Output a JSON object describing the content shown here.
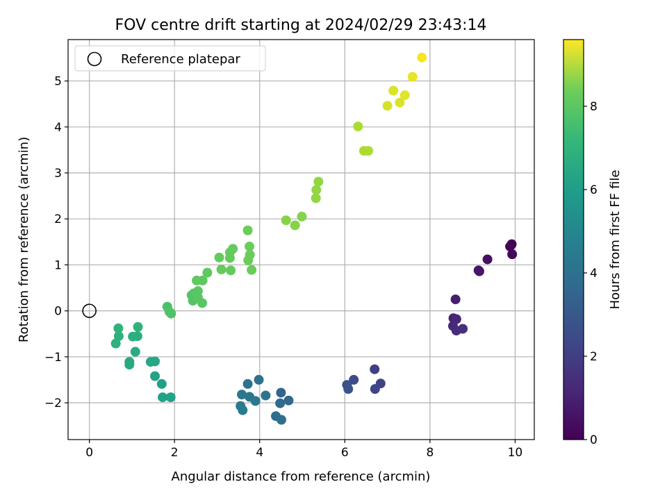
{
  "chart_data": {
    "type": "scatter",
    "title": "FOV centre drift starting at 2024/02/29 23:43:14",
    "xlabel": "Angular distance from reference (arcmin)",
    "ylabel": "Rotation from reference (arcmin)",
    "xlim": [
      -0.5,
      10.45
    ],
    "ylim": [
      -2.8,
      5.9
    ],
    "xticks": [
      0,
      2,
      4,
      6,
      8,
      10
    ],
    "yticks": [
      -2,
      -1,
      0,
      1,
      2,
      3,
      4,
      5
    ],
    "grid": true,
    "legend": {
      "position": "top-left",
      "entries": [
        "Reference platepar"
      ]
    },
    "reference_point": {
      "x": 0,
      "y": 0,
      "marker": "open-circle"
    },
    "colorbar": {
      "label": "Hours from first FF file",
      "colormap": "viridis",
      "range": [
        0,
        9.6
      ],
      "ticks": [
        0,
        2,
        4,
        6,
        8
      ]
    },
    "points": [
      {
        "x": 9.92,
        "y": 1.45,
        "c": 0.0
      },
      {
        "x": 9.88,
        "y": 1.4,
        "c": 0.1
      },
      {
        "x": 9.93,
        "y": 1.23,
        "c": 0.2
      },
      {
        "x": 9.35,
        "y": 1.12,
        "c": 0.4
      },
      {
        "x": 9.14,
        "y": 0.88,
        "c": 0.5
      },
      {
        "x": 9.16,
        "y": 0.86,
        "c": 0.6
      },
      {
        "x": 8.6,
        "y": 0.25,
        "c": 0.8
      },
      {
        "x": 8.55,
        "y": -0.16,
        "c": 0.9
      },
      {
        "x": 8.62,
        "y": -0.18,
        "c": 1.0
      },
      {
        "x": 8.54,
        "y": -0.33,
        "c": 1.1
      },
      {
        "x": 8.62,
        "y": -0.43,
        "c": 1.2
      },
      {
        "x": 8.77,
        "y": -0.39,
        "c": 1.3
      },
      {
        "x": 6.7,
        "y": -1.27,
        "c": 1.8
      },
      {
        "x": 6.84,
        "y": -1.58,
        "c": 1.9
      },
      {
        "x": 6.71,
        "y": -1.7,
        "c": 2.0
      },
      {
        "x": 6.21,
        "y": -1.5,
        "c": 2.2
      },
      {
        "x": 6.05,
        "y": -1.61,
        "c": 2.4
      },
      {
        "x": 6.08,
        "y": -1.7,
        "c": 2.5
      },
      {
        "x": 4.5,
        "y": -1.78,
        "c": 3.1
      },
      {
        "x": 4.68,
        "y": -1.95,
        "c": 3.2
      },
      {
        "x": 4.48,
        "y": -2.01,
        "c": 3.3
      },
      {
        "x": 4.38,
        "y": -2.29,
        "c": 3.4
      },
      {
        "x": 4.51,
        "y": -2.37,
        "c": 3.5
      },
      {
        "x": 3.98,
        "y": -1.5,
        "c": 3.6
      },
      {
        "x": 3.72,
        "y": -1.59,
        "c": 3.6
      },
      {
        "x": 4.14,
        "y": -1.84,
        "c": 3.7
      },
      {
        "x": 3.58,
        "y": -1.82,
        "c": 3.8
      },
      {
        "x": 3.76,
        "y": -1.87,
        "c": 3.8
      },
      {
        "x": 3.9,
        "y": -1.96,
        "c": 3.9
      },
      {
        "x": 3.55,
        "y": -2.07,
        "c": 3.9
      },
      {
        "x": 3.6,
        "y": -2.16,
        "c": 4.0
      },
      {
        "x": 1.7,
        "y": -1.59,
        "c": 5.4
      },
      {
        "x": 1.72,
        "y": -1.88,
        "c": 5.5
      },
      {
        "x": 1.91,
        "y": -1.88,
        "c": 5.5
      },
      {
        "x": 1.54,
        "y": -1.42,
        "c": 5.6
      },
      {
        "x": 1.44,
        "y": -1.11,
        "c": 5.7
      },
      {
        "x": 1.54,
        "y": -1.1,
        "c": 5.7
      },
      {
        "x": 0.94,
        "y": -1.11,
        "c": 5.8
      },
      {
        "x": 0.94,
        "y": -1.17,
        "c": 5.8
      },
      {
        "x": 1.08,
        "y": -0.89,
        "c": 5.9
      },
      {
        "x": 1.02,
        "y": -0.56,
        "c": 6.0
      },
      {
        "x": 1.13,
        "y": -0.55,
        "c": 6.0
      },
      {
        "x": 0.69,
        "y": -0.55,
        "c": 6.1
      },
      {
        "x": 0.62,
        "y": -0.71,
        "c": 6.1
      },
      {
        "x": 0.68,
        "y": -0.38,
        "c": 6.2
      },
      {
        "x": 1.14,
        "y": -0.35,
        "c": 6.2
      },
      {
        "x": 1.83,
        "y": 0.09,
        "c": 6.8
      },
      {
        "x": 1.88,
        "y": -0.02,
        "c": 6.9
      },
      {
        "x": 1.92,
        "y": -0.06,
        "c": 6.9
      },
      {
        "x": 2.4,
        "y": 0.34,
        "c": 7.0
      },
      {
        "x": 2.43,
        "y": 0.22,
        "c": 7.0
      },
      {
        "x": 2.45,
        "y": 0.38,
        "c": 7.0
      },
      {
        "x": 2.52,
        "y": 0.36,
        "c": 7.1
      },
      {
        "x": 2.55,
        "y": 0.43,
        "c": 7.1
      },
      {
        "x": 2.55,
        "y": 0.29,
        "c": 7.1
      },
      {
        "x": 2.65,
        "y": 0.17,
        "c": 7.1
      },
      {
        "x": 2.52,
        "y": 0.66,
        "c": 7.2
      },
      {
        "x": 2.66,
        "y": 0.66,
        "c": 7.2
      },
      {
        "x": 2.77,
        "y": 0.83,
        "c": 7.2
      },
      {
        "x": 3.1,
        "y": 0.9,
        "c": 7.3
      },
      {
        "x": 3.32,
        "y": 0.88,
        "c": 7.3
      },
      {
        "x": 3.05,
        "y": 1.16,
        "c": 7.3
      },
      {
        "x": 3.3,
        "y": 1.15,
        "c": 7.3
      },
      {
        "x": 3.3,
        "y": 1.27,
        "c": 7.3
      },
      {
        "x": 3.37,
        "y": 1.35,
        "c": 7.3
      },
      {
        "x": 3.72,
        "y": 1.75,
        "c": 7.4
      },
      {
        "x": 3.76,
        "y": 1.4,
        "c": 7.4
      },
      {
        "x": 3.77,
        "y": 1.22,
        "c": 7.4
      },
      {
        "x": 3.73,
        "y": 1.1,
        "c": 7.4
      },
      {
        "x": 3.81,
        "y": 0.89,
        "c": 7.4
      },
      {
        "x": 4.62,
        "y": 1.97,
        "c": 7.8
      },
      {
        "x": 4.83,
        "y": 1.86,
        "c": 7.8
      },
      {
        "x": 4.99,
        "y": 2.05,
        "c": 7.8
      },
      {
        "x": 5.38,
        "y": 2.81,
        "c": 8.0
      },
      {
        "x": 5.33,
        "y": 2.63,
        "c": 8.0
      },
      {
        "x": 5.32,
        "y": 2.45,
        "c": 8.0
      },
      {
        "x": 6.31,
        "y": 4.01,
        "c": 8.4
      },
      {
        "x": 6.45,
        "y": 3.48,
        "c": 8.4
      },
      {
        "x": 6.55,
        "y": 3.48,
        "c": 8.4
      },
      {
        "x": 7.0,
        "y": 4.46,
        "c": 9.0
      },
      {
        "x": 7.14,
        "y": 4.79,
        "c": 9.1
      },
      {
        "x": 7.29,
        "y": 4.53,
        "c": 9.1
      },
      {
        "x": 7.41,
        "y": 4.69,
        "c": 9.2
      },
      {
        "x": 7.59,
        "y": 5.09,
        "c": 9.3
      },
      {
        "x": 7.81,
        "y": 5.51,
        "c": 9.5
      }
    ]
  }
}
